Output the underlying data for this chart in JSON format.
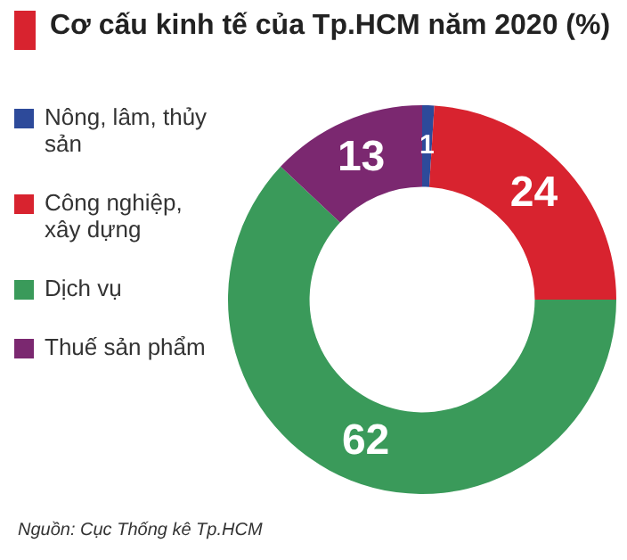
{
  "chart_data": {
    "type": "donut",
    "title": "Cơ cấu kinh tế của Tp.HCM năm 2020 (%)",
    "categories": [
      "Nông, lâm, thủy sản",
      "Công nghiệp, xây dựng",
      "Dịch vụ",
      "Thuế sản phẩm"
    ],
    "values": [
      1,
      24,
      62,
      13
    ],
    "colors": [
      "#2d4a9a",
      "#d8232f",
      "#3a9a5a",
      "#7b2870"
    ],
    "data_labels": true,
    "legend": "left",
    "annotations": [
      "Nguồn: Cục Thống kê Tp.HCM"
    ]
  }
}
